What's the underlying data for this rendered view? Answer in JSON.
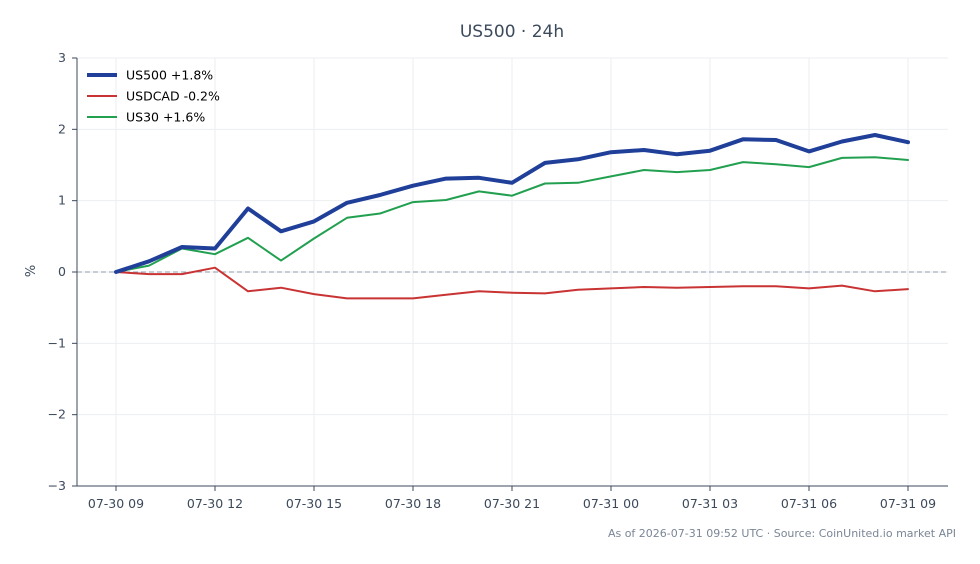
{
  "chart_data": {
    "type": "line",
    "title": "US500 · 24h",
    "xlabel": "",
    "ylabel": "%",
    "x": [
      "07-30 09",
      "07-30 10",
      "07-30 11",
      "07-30 12",
      "07-30 13",
      "07-30 14",
      "07-30 15",
      "07-30 16",
      "07-30 17",
      "07-30 18",
      "07-30 19",
      "07-30 20",
      "07-30 21",
      "07-30 22",
      "07-30 23",
      "07-31 00",
      "07-31 01",
      "07-31 02",
      "07-31 03",
      "07-31 04",
      "07-31 05",
      "07-31 06",
      "07-31 07",
      "07-31 08",
      "07-31 09"
    ],
    "x_ticks": [
      "07-30 09",
      "07-30 12",
      "07-30 15",
      "07-30 18",
      "07-30 21",
      "07-31 00",
      "07-31 03",
      "07-31 06",
      "07-31 09"
    ],
    "ylim": [
      -3,
      3
    ],
    "y_ticks": [
      3,
      2,
      1,
      0,
      -1,
      -2,
      -3
    ],
    "y_tick_labels": [
      "3",
      "2",
      "1",
      "0",
      "−1",
      "−2",
      "−3"
    ],
    "grid": true,
    "zero_line": true,
    "legend_position": "top-left",
    "series": [
      {
        "name": "US500 +1.8%",
        "color": "#1f3f99",
        "values": [
          0.0,
          0.15,
          0.35,
          0.33,
          0.89,
          0.57,
          0.71,
          0.97,
          1.08,
          1.21,
          1.31,
          1.32,
          1.25,
          1.53,
          1.58,
          1.68,
          1.71,
          1.65,
          1.7,
          1.86,
          1.85,
          1.69,
          1.83,
          1.92,
          1.82
        ]
      },
      {
        "name": "USDCAD -0.2%",
        "color": "#c93333",
        "values": [
          0.0,
          -0.03,
          -0.03,
          0.06,
          -0.27,
          -0.22,
          -0.31,
          -0.37,
          -0.37,
          -0.37,
          -0.32,
          -0.27,
          -0.29,
          -0.3,
          -0.25,
          -0.23,
          -0.21,
          -0.22,
          -0.21,
          -0.2,
          -0.2,
          -0.23,
          -0.19,
          -0.27,
          -0.24
        ]
      },
      {
        "name": "US30 +1.6%",
        "color": "#22a050",
        "values": [
          0.0,
          0.09,
          0.33,
          0.25,
          0.48,
          0.16,
          0.47,
          0.76,
          0.82,
          0.98,
          1.01,
          1.13,
          1.07,
          1.24,
          1.25,
          1.34,
          1.43,
          1.4,
          1.43,
          1.54,
          1.51,
          1.47,
          1.6,
          1.61,
          1.57
        ]
      }
    ],
    "footer": "As of 2026-07-31 09:52 UTC · Source: CoinUnited.io market API"
  }
}
